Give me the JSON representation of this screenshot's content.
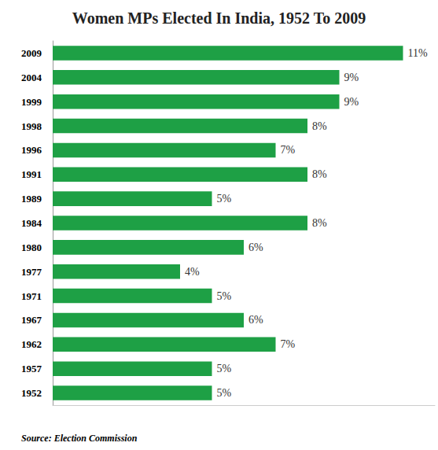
{
  "chart_data": {
    "type": "bar",
    "title": "Women MPs Elected In India, 1952 To 2009",
    "annotation": "Source: Election Commission",
    "orientation": "horizontal",
    "categories": [
      "1952",
      "1957",
      "1962",
      "1967",
      "1971",
      "1977",
      "1980",
      "1984",
      "1989",
      "1991",
      "1996",
      "1998",
      "1999",
      "2004",
      "2009"
    ],
    "values": [
      5,
      5,
      7,
      6,
      5,
      4,
      6,
      8,
      5,
      8,
      7,
      8,
      9,
      9,
      11
    ],
    "value_labels": [
      "5%",
      "5%",
      "7%",
      "6%",
      "5%",
      "4%",
      "6%",
      "8%",
      "5%",
      "8%",
      "7%",
      "8%",
      "9%",
      "9%",
      "11%"
    ],
    "color": "#1ea045",
    "xlim": [
      0,
      12
    ],
    "grid": false,
    "data_labels": true,
    "tick_labels": "y"
  }
}
